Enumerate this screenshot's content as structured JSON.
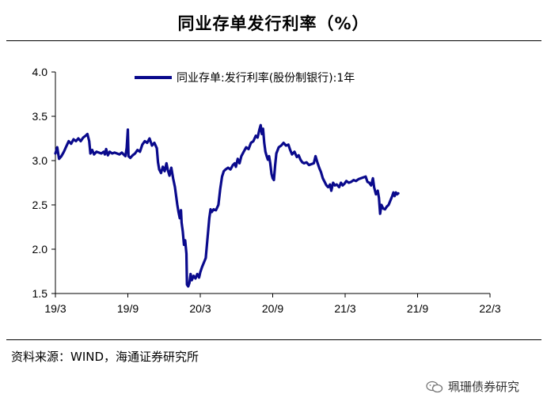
{
  "title": "同业存单发行利率（%）",
  "source": "资料来源：WIND，海通证券研究所",
  "watermark": "珮珊债券研究",
  "colors": {
    "series": "#0a0a8c",
    "axis": "#000000"
  },
  "chart_data": {
    "type": "line",
    "title": "同业存单发行利率（%）",
    "ylim": [
      1.5,
      4.0
    ],
    "yticks": [
      "4.0",
      "3.5",
      "3.0",
      "2.5",
      "2.0",
      "1.5"
    ],
    "xticks": [
      {
        "label": "19/3",
        "t": 0
      },
      {
        "label": "19/9",
        "t": 6
      },
      {
        "label": "20/3",
        "t": 12
      },
      {
        "label": "20/9",
        "t": 18
      },
      {
        "label": "21/3",
        "t": 24
      },
      {
        "label": "21/9",
        "t": 30
      },
      {
        "label": "22/3",
        "t": 36
      }
    ],
    "legend_position": "top",
    "grid": false,
    "series": [
      {
        "name": "同业存单:发行利率(股份制银行):1年",
        "points": [
          [
            0.0,
            3.08
          ],
          [
            0.15,
            3.15
          ],
          [
            0.3,
            3.02
          ],
          [
            0.5,
            3.05
          ],
          [
            0.7,
            3.1
          ],
          [
            0.9,
            3.16
          ],
          [
            1.1,
            3.22
          ],
          [
            1.3,
            3.19
          ],
          [
            1.5,
            3.24
          ],
          [
            1.7,
            3.22
          ],
          [
            1.9,
            3.25
          ],
          [
            2.1,
            3.22
          ],
          [
            2.3,
            3.26
          ],
          [
            2.5,
            3.28
          ],
          [
            2.65,
            3.3
          ],
          [
            2.8,
            3.22
          ],
          [
            2.9,
            3.08
          ],
          [
            3.05,
            3.12
          ],
          [
            3.2,
            3.07
          ],
          [
            3.4,
            3.1
          ],
          [
            3.6,
            3.09
          ],
          [
            3.8,
            3.08
          ],
          [
            4.0,
            3.1
          ],
          [
            4.1,
            3.07
          ],
          [
            4.2,
            3.13
          ],
          [
            4.35,
            3.06
          ],
          [
            4.5,
            3.1
          ],
          [
            4.7,
            3.08
          ],
          [
            4.9,
            3.09
          ],
          [
            5.1,
            3.08
          ],
          [
            5.3,
            3.07
          ],
          [
            5.5,
            3.09
          ],
          [
            5.65,
            3.07
          ],
          [
            5.8,
            3.05
          ],
          [
            5.9,
            3.14
          ],
          [
            6.0,
            3.35
          ],
          [
            6.05,
            3.05
          ],
          [
            6.2,
            3.03
          ],
          [
            6.4,
            3.06
          ],
          [
            6.6,
            3.08
          ],
          [
            6.8,
            3.12
          ],
          [
            7.0,
            3.1
          ],
          [
            7.2,
            3.18
          ],
          [
            7.4,
            3.22
          ],
          [
            7.6,
            3.2
          ],
          [
            7.8,
            3.25
          ],
          [
            8.0,
            3.17
          ],
          [
            8.2,
            3.2
          ],
          [
            8.4,
            3.14
          ],
          [
            8.5,
            2.98
          ],
          [
            8.6,
            2.9
          ],
          [
            8.75,
            2.86
          ],
          [
            8.9,
            2.93
          ],
          [
            9.05,
            2.88
          ],
          [
            9.2,
            2.97
          ],
          [
            9.3,
            2.9
          ],
          [
            9.45,
            2.83
          ],
          [
            9.6,
            2.92
          ],
          [
            9.75,
            2.8
          ],
          [
            9.9,
            2.7
          ],
          [
            10.0,
            2.6
          ],
          [
            10.1,
            2.5
          ],
          [
            10.2,
            2.42
          ],
          [
            10.3,
            2.35
          ],
          [
            10.4,
            2.44
          ],
          [
            10.45,
            2.3
          ],
          [
            10.55,
            2.2
          ],
          [
            10.65,
            2.05
          ],
          [
            10.75,
            2.1
          ],
          [
            10.85,
            1.95
          ],
          [
            10.9,
            1.6
          ],
          [
            11.0,
            1.58
          ],
          [
            11.1,
            1.62
          ],
          [
            11.2,
            1.72
          ],
          [
            11.3,
            1.65
          ],
          [
            11.45,
            1.7
          ],
          [
            11.6,
            1.67
          ],
          [
            11.75,
            1.72
          ],
          [
            11.9,
            1.68
          ],
          [
            12.0,
            1.74
          ],
          [
            12.15,
            1.8
          ],
          [
            12.3,
            1.85
          ],
          [
            12.45,
            1.9
          ],
          [
            12.55,
            2.05
          ],
          [
            12.65,
            2.2
          ],
          [
            12.75,
            2.35
          ],
          [
            12.85,
            2.45
          ],
          [
            12.95,
            2.42
          ],
          [
            13.1,
            2.45
          ],
          [
            13.3,
            2.44
          ],
          [
            13.5,
            2.5
          ],
          [
            13.65,
            2.68
          ],
          [
            13.8,
            2.82
          ],
          [
            13.95,
            2.88
          ],
          [
            14.1,
            2.9
          ],
          [
            14.3,
            2.92
          ],
          [
            14.5,
            2.9
          ],
          [
            14.7,
            2.95
          ],
          [
            14.85,
            2.97
          ],
          [
            14.95,
            2.93
          ],
          [
            15.1,
            3.02
          ],
          [
            15.25,
            2.97
          ],
          [
            15.4,
            3.05
          ],
          [
            15.6,
            3.1
          ],
          [
            15.8,
            3.15
          ],
          [
            16.0,
            3.13
          ],
          [
            16.2,
            3.2
          ],
          [
            16.4,
            3.22
          ],
          [
            16.6,
            3.28
          ],
          [
            16.75,
            3.26
          ],
          [
            16.9,
            3.35
          ],
          [
            17.0,
            3.4
          ],
          [
            17.1,
            3.3
          ],
          [
            17.2,
            3.36
          ],
          [
            17.3,
            3.2
          ],
          [
            17.4,
            3.1
          ],
          [
            17.5,
            3.05
          ],
          [
            17.6,
            3.01
          ],
          [
            17.7,
            3.05
          ],
          [
            17.8,
            2.97
          ],
          [
            17.9,
            2.85
          ],
          [
            18.0,
            2.8
          ],
          [
            18.1,
            2.78
          ],
          [
            18.2,
            2.95
          ],
          [
            18.3,
            3.08
          ],
          [
            18.5,
            3.15
          ],
          [
            18.7,
            3.17
          ],
          [
            18.9,
            3.2
          ],
          [
            19.1,
            3.17
          ],
          [
            19.3,
            3.18
          ],
          [
            19.45,
            3.12
          ],
          [
            19.6,
            3.07
          ],
          [
            19.8,
            3.1
          ],
          [
            20.0,
            3.04
          ],
          [
            20.15,
            3.06
          ],
          [
            20.3,
            3.01
          ],
          [
            20.45,
            2.98
          ],
          [
            20.6,
            2.97
          ],
          [
            20.8,
            2.98
          ],
          [
            21.0,
            2.95
          ],
          [
            21.2,
            2.96
          ],
          [
            21.4,
            2.97
          ],
          [
            21.55,
            3.05
          ],
          [
            21.7,
            2.98
          ],
          [
            21.85,
            2.92
          ],
          [
            22.0,
            2.87
          ],
          [
            22.15,
            2.8
          ],
          [
            22.3,
            2.76
          ],
          [
            22.45,
            2.72
          ],
          [
            22.6,
            2.7
          ],
          [
            22.75,
            2.73
          ],
          [
            22.85,
            2.66
          ],
          [
            23.0,
            2.75
          ],
          [
            23.15,
            2.72
          ],
          [
            23.3,
            2.73
          ],
          [
            23.5,
            2.7
          ],
          [
            23.65,
            2.75
          ],
          [
            23.8,
            2.72
          ],
          [
            23.95,
            2.74
          ],
          [
            24.1,
            2.77
          ],
          [
            24.3,
            2.75
          ],
          [
            24.5,
            2.76
          ],
          [
            24.7,
            2.78
          ],
          [
            24.9,
            2.77
          ],
          [
            25.1,
            2.79
          ],
          [
            25.3,
            2.8
          ],
          [
            25.5,
            2.81
          ],
          [
            25.7,
            2.82
          ],
          [
            25.85,
            2.76
          ],
          [
            26.0,
            2.75
          ],
          [
            26.15,
            2.72
          ],
          [
            26.3,
            2.8
          ],
          [
            26.4,
            2.7
          ],
          [
            26.55,
            2.62
          ],
          [
            26.7,
            2.66
          ],
          [
            26.8,
            2.58
          ],
          [
            26.9,
            2.4
          ],
          [
            27.0,
            2.5
          ],
          [
            27.15,
            2.46
          ],
          [
            27.3,
            2.45
          ],
          [
            27.45,
            2.48
          ],
          [
            27.6,
            2.5
          ],
          [
            27.75,
            2.55
          ],
          [
            27.9,
            2.6
          ],
          [
            28.0,
            2.64
          ],
          [
            28.1,
            2.6
          ],
          [
            28.2,
            2.64
          ],
          [
            28.3,
            2.62
          ],
          [
            28.4,
            2.63
          ]
        ]
      }
    ]
  }
}
